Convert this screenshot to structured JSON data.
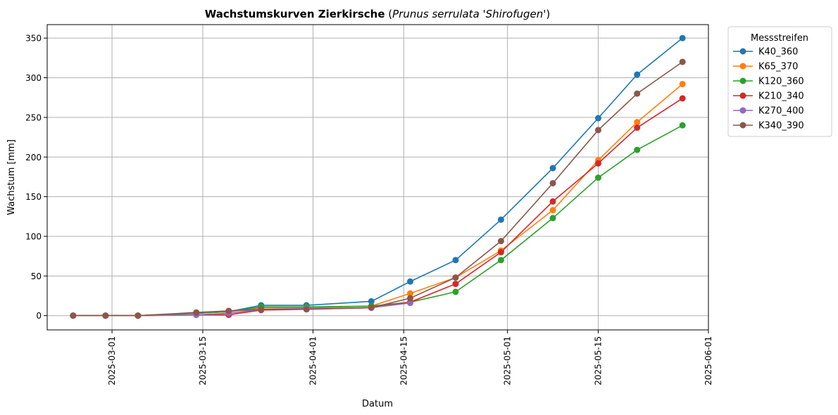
{
  "chart_data": {
    "type": "line",
    "title": {
      "bold": "Wachstumskurven Zierkirsche",
      "open": " (",
      "italic": "Prunus serrulata 'Shirofugen'",
      "close": ")"
    },
    "xlabel": "Datum",
    "ylabel": "Wachstum [mm]",
    "xlim": [
      "2025-02-19",
      "2025-06-01"
    ],
    "ylim": [
      -18,
      367
    ],
    "x_ticks": [
      "2025-03-01",
      "2025-03-15",
      "2025-04-01",
      "2025-04-15",
      "2025-05-01",
      "2025-05-15",
      "2025-06-01"
    ],
    "y_ticks": [
      0,
      50,
      100,
      150,
      200,
      250,
      300,
      350
    ],
    "grid": true,
    "legend": {
      "title": "Messstreifen",
      "placement": "outside-top-right"
    },
    "x": [
      "2025-02-23",
      "2025-02-28",
      "2025-03-05",
      "2025-03-14",
      "2025-03-19",
      "2025-03-24",
      "2025-03-31",
      "2025-04-10",
      "2025-04-16",
      "2025-04-23",
      "2025-04-30",
      "2025-05-08",
      "2025-05-15",
      "2025-05-21",
      "2025-05-28"
    ],
    "series": [
      {
        "name": "K40_360",
        "color": "#1f77b4",
        "values": [
          0,
          0,
          0,
          3,
          5,
          13,
          13,
          18,
          43,
          70,
          121,
          186,
          249,
          304,
          350
        ]
      },
      {
        "name": "K65_370",
        "color": "#ff7f0e",
        "values": [
          0,
          0,
          0,
          3,
          5,
          10,
          10,
          12,
          28,
          48,
          82,
          133,
          196,
          244,
          292
        ]
      },
      {
        "name": "K120_360",
        "color": "#2ca02c",
        "values": [
          0,
          0,
          0,
          3,
          5,
          11,
          11,
          12,
          17,
          30,
          70,
          123,
          174,
          209,
          240
        ]
      },
      {
        "name": "K210_340",
        "color": "#d62728",
        "values": [
          0,
          0,
          0,
          1,
          1,
          7,
          8,
          10,
          17,
          40,
          80,
          144,
          192,
          237,
          274
        ]
      },
      {
        "name": "K270_400",
        "color": "#9467bd",
        "values": [
          0,
          0,
          0,
          1,
          3,
          8,
          9,
          10,
          16,
          null,
          null,
          null,
          null,
          null,
          null
        ]
      },
      {
        "name": "K340_390",
        "color": "#8c564b",
        "values": [
          0,
          0,
          0,
          4,
          6,
          8,
          8,
          10,
          22,
          48,
          94,
          167,
          234,
          280,
          320
        ]
      }
    ]
  }
}
